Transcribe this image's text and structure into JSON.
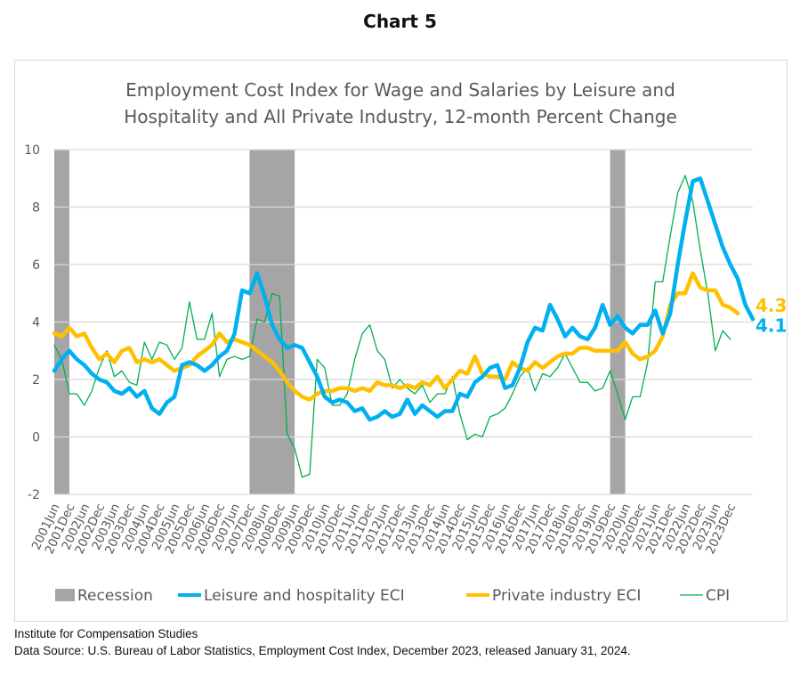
{
  "page": {
    "heading": "Chart 5",
    "footer_org": "Institute for Compensation Studies",
    "footer_source": "Data Source: U.S. Bureau of Labor Statistics, Employment Cost Index, December 2023, released January 31, 2024."
  },
  "chart_data": {
    "type": "line",
    "title_lines": [
      "Employment Cost Index for Wage and Salaries by Leisure and",
      "Hospitality and All Private Industry, 12-month Percent Change"
    ],
    "xlabel": "",
    "ylabel": "",
    "ylim": [
      -2,
      10
    ],
    "yticks": [
      -2,
      0,
      2,
      4,
      6,
      8,
      10
    ],
    "grid": true,
    "legend_position": "bottom",
    "x_frequency": "quarterly",
    "x_start": "2001Jun",
    "x_end": "2023Dec",
    "x_tick_labels": [
      "2001Jun",
      "2001Dec",
      "2002Jun",
      "2002Dec",
      "2003Jun",
      "2003Dec",
      "2004Jun",
      "2004Dec",
      "2005Jun",
      "2005Dec",
      "2006Jun",
      "2006Dec",
      "2007Jun",
      "2007Dec",
      "2008Jun",
      "2008Dec",
      "2009Jun",
      "2009Dec",
      "2010Jun",
      "2010Dec",
      "2011Jun",
      "2011Dec",
      "2012Jun",
      "2012Dec",
      "2013Jun",
      "2013Dec",
      "2014Jun",
      "2014Dec",
      "2015Jun",
      "2015Dec",
      "2016Jun",
      "2016Dec",
      "2017Jun",
      "2017Dec",
      "2018Jun",
      "2018Dec",
      "2019Jun",
      "2019Dec",
      "2020Jun",
      "2020Dec",
      "2021Jun",
      "2021Dec",
      "2022Jun",
      "2022Dec",
      "2023Jun",
      "2023Dec"
    ],
    "recessions": [
      {
        "start": "2001Jun",
        "end": "2001Dec"
      },
      {
        "start": "2007Dec",
        "end": "2009Jun"
      },
      {
        "start": "2019Dec",
        "end": "2020Jun"
      }
    ],
    "series": [
      {
        "name": "Leisure and hospitality ECI",
        "color": "#00b0f0",
        "end_label": "4.1",
        "values": [
          2.3,
          2.7,
          3.0,
          2.7,
          2.5,
          2.2,
          2.0,
          1.9,
          1.6,
          1.5,
          1.7,
          1.4,
          1.6,
          1.0,
          0.8,
          1.2,
          1.4,
          2.5,
          2.6,
          2.5,
          2.3,
          2.5,
          2.8,
          3.0,
          3.6,
          5.1,
          5.0,
          5.7,
          4.9,
          3.9,
          3.4,
          3.1,
          3.2,
          3.1,
          2.6,
          2.1,
          1.4,
          1.2,
          1.3,
          1.2,
          0.9,
          1.0,
          0.6,
          0.7,
          0.9,
          0.7,
          0.8,
          1.3,
          0.8,
          1.1,
          0.9,
          0.7,
          0.9,
          0.9,
          1.5,
          1.4,
          1.9,
          2.1,
          2.4,
          2.5,
          1.7,
          1.8,
          2.4,
          3.3,
          3.8,
          3.7,
          4.6,
          4.1,
          3.5,
          3.8,
          3.5,
          3.4,
          3.8,
          4.6,
          3.9,
          4.2,
          3.8,
          3.6,
          3.9,
          3.9,
          4.4,
          3.6,
          4.3,
          6.0,
          7.5,
          8.9,
          9.0,
          8.2,
          7.4,
          6.6,
          6.0,
          5.5,
          4.6,
          4.1
        ]
      },
      {
        "name": "Private industry ECI",
        "color": "#ffc000",
        "end_label": "4.3",
        "values": [
          3.6,
          3.5,
          3.8,
          3.5,
          3.6,
          3.1,
          2.7,
          2.9,
          2.6,
          3.0,
          3.1,
          2.6,
          2.7,
          2.6,
          2.7,
          2.5,
          2.3,
          2.4,
          2.5,
          2.8,
          3.0,
          3.2,
          3.6,
          3.3,
          3.4,
          3.3,
          3.2,
          3.0,
          2.8,
          2.6,
          2.3,
          1.9,
          1.6,
          1.4,
          1.3,
          1.5,
          1.6,
          1.6,
          1.7,
          1.7,
          1.6,
          1.7,
          1.6,
          1.9,
          1.8,
          1.8,
          1.7,
          1.8,
          1.7,
          1.9,
          1.8,
          2.1,
          1.7,
          2.0,
          2.3,
          2.2,
          2.8,
          2.2,
          2.1,
          2.1,
          2.0,
          2.6,
          2.4,
          2.3,
          2.6,
          2.4,
          2.6,
          2.8,
          2.9,
          2.9,
          3.1,
          3.1,
          3.0,
          3.0,
          3.0,
          3.0,
          3.3,
          2.9,
          2.7,
          2.8,
          3.0,
          3.5,
          4.6,
          5.0,
          5.0,
          5.7,
          5.2,
          5.1,
          5.1,
          4.6,
          4.5,
          4.3
        ]
      },
      {
        "name": "CPI",
        "color": "#00b050",
        "values": [
          3.2,
          2.7,
          1.5,
          1.5,
          1.1,
          1.6,
          2.4,
          3.0,
          2.1,
          2.3,
          1.9,
          1.8,
          3.3,
          2.7,
          3.3,
          3.2,
          2.7,
          3.1,
          4.7,
          3.4,
          3.4,
          4.3,
          2.1,
          2.7,
          2.8,
          2.7,
          2.8,
          4.1,
          4.0,
          5.0,
          4.9,
          0.1,
          -0.4,
          -1.4,
          -1.3,
          2.7,
          2.4,
          1.1,
          1.1,
          1.5,
          2.7,
          3.6,
          3.9,
          3.0,
          2.7,
          1.7,
          2.0,
          1.7,
          1.5,
          1.8,
          1.2,
          1.5,
          1.5,
          2.1,
          0.8,
          -0.1,
          0.1,
          0.0,
          0.7,
          0.8,
          1.0,
          1.5,
          2.1,
          2.4,
          1.6,
          2.2,
          2.1,
          2.4,
          2.9,
          2.4,
          1.9,
          1.9,
          1.6,
          1.7,
          2.3,
          1.5,
          0.6,
          1.4,
          1.4,
          2.6,
          5.4,
          5.4,
          7.0,
          8.5,
          9.1,
          8.2,
          6.5,
          5.0,
          3.0,
          3.7,
          3.4
        ]
      }
    ],
    "legend": [
      {
        "label": "Recession",
        "type": "box",
        "color": "#a5a5a5"
      },
      {
        "label": "Leisure and hospitality ECI",
        "type": "line",
        "color": "#00b0f0"
      },
      {
        "label": "Private industry ECI",
        "type": "line",
        "color": "#ffc000"
      },
      {
        "label": "CPI",
        "type": "line",
        "color": "#00b050"
      }
    ]
  }
}
